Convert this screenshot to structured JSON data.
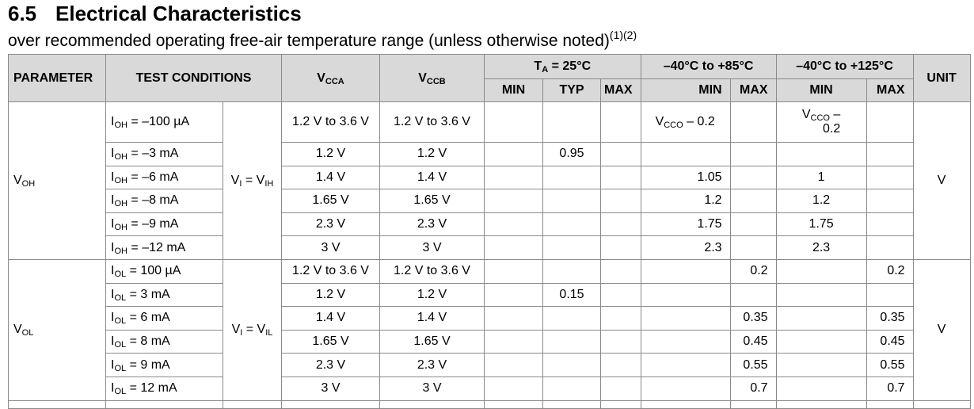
{
  "section": {
    "number": "6.5",
    "title": "Electrical Characteristics",
    "subtitle": "over recommended operating free-air temperature range (unless otherwise noted)",
    "footnote_refs": "(1)(2)"
  },
  "header": {
    "parameter": "PARAMETER",
    "test_conditions": "TEST CONDITIONS",
    "vcca": {
      "main": "V",
      "sub": "CCA"
    },
    "vccb": {
      "main": "V",
      "sub": "CCB"
    },
    "ta25": {
      "t": "T",
      "sub": "A",
      "rest": " = 25°C"
    },
    "range85": "–40°C to +85°C",
    "range125": "–40°C to +125°C",
    "unit": "UNIT",
    "min": "MIN",
    "typ": "TYP",
    "max": "MAX"
  },
  "voh": {
    "param": {
      "main": "V",
      "sub": "OH"
    },
    "condition": {
      "a": "V",
      "a_sub": "I",
      "eq": " = V",
      "b_sub": "IH"
    },
    "unit": "V",
    "rows": [
      {
        "i": "I",
        "i_sub": "OH",
        "val": " = –100 µA",
        "vcca": "1.2 V to 3.6 V",
        "vccb": "1.2 V to 3.6 V",
        "typ": "",
        "min85_main": "V",
        "min85_sub": "CCO",
        "min85_rest": " – 0.2",
        "min125_line1": "V",
        "min125_sub": "CCO",
        "min125_line1_rest": " –",
        "min125_line2": "0.2"
      },
      {
        "i": "I",
        "i_sub": "OH",
        "val": " = –3 mA",
        "vcca": "1.2 V",
        "vccb": "1.2 V",
        "typ": "0.95",
        "min85": "",
        "min125": ""
      },
      {
        "i": "I",
        "i_sub": "OH",
        "val": " = –6 mA",
        "vcca": "1.4 V",
        "vccb": "1.4 V",
        "typ": "",
        "min85": "1.05",
        "min125": "1"
      },
      {
        "i": "I",
        "i_sub": "OH",
        "val": " = –8 mA",
        "vcca": "1.65 V",
        "vccb": "1.65 V",
        "typ": "",
        "min85": "1.2",
        "min125": "1.2"
      },
      {
        "i": "I",
        "i_sub": "OH",
        "val": " = –9 mA",
        "vcca": "2.3 V",
        "vccb": "2.3 V",
        "typ": "",
        "min85": "1.75",
        "min125": "1.75"
      },
      {
        "i": "I",
        "i_sub": "OH",
        "val": " = –12 mA",
        "vcca": "3 V",
        "vccb": "3 V",
        "typ": "",
        "min85": "2.3",
        "min125": "2.3"
      }
    ]
  },
  "vol": {
    "param": {
      "main": "V",
      "sub": "OL"
    },
    "condition": {
      "a": "V",
      "a_sub": "I",
      "eq": " = V",
      "b_sub": "IL"
    },
    "unit": "V",
    "rows": [
      {
        "i": "I",
        "i_sub": "OL",
        "val": " = 100 µA",
        "vcca": "1.2 V to 3.6 V",
        "vccb": "1.2 V to 3.6 V",
        "typ": "",
        "max85": "0.2",
        "max125": "0.2"
      },
      {
        "i": "I",
        "i_sub": "OL",
        "val": " = 3 mA",
        "vcca": "1.2 V",
        "vccb": "1.2 V",
        "typ": "0.15",
        "max85": "",
        "max125": ""
      },
      {
        "i": "I",
        "i_sub": "OL",
        "val": " = 6 mA",
        "vcca": "1.4 V",
        "vccb": "1.4 V",
        "typ": "",
        "max85": "0.35",
        "max125": "0.35"
      },
      {
        "i": "I",
        "i_sub": "OL",
        "val": " = 8 mA",
        "vcca": "1.65 V",
        "vccb": "1.65 V",
        "typ": "",
        "max85": "0.45",
        "max125": "0.45"
      },
      {
        "i": "I",
        "i_sub": "OL",
        "val": " = 9 mA",
        "vcca": "2.3 V",
        "vccb": "2.3 V",
        "typ": "",
        "max85": "0.55",
        "max125": "0.55"
      },
      {
        "i": "I",
        "i_sub": "OL",
        "val": " = 12 mA",
        "vcca": "3 V",
        "vccb": "3 V",
        "typ": "",
        "max85": "0.7",
        "max125": "0.7"
      }
    ]
  }
}
